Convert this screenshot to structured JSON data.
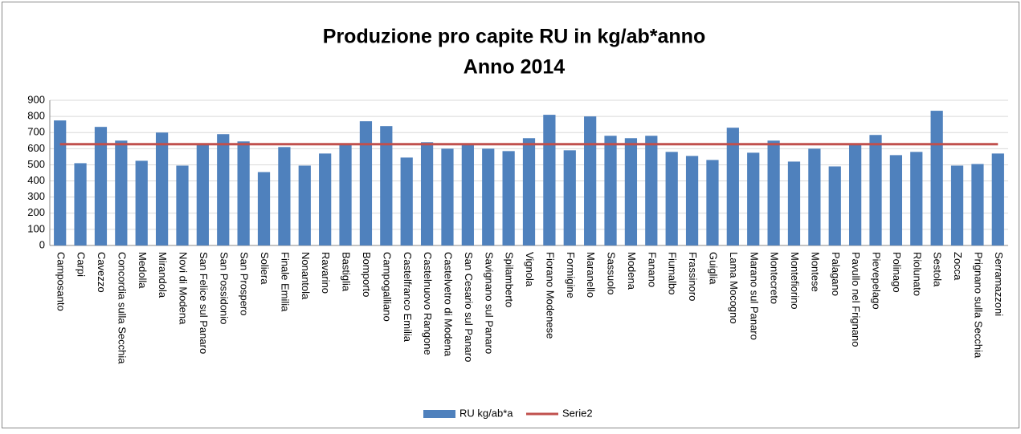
{
  "chart_data": {
    "type": "bar",
    "title": "Produzione  pro capite RU in kg/ab*anno",
    "subtitle": "Anno 2014",
    "categories": [
      "Camposanto",
      "Carpi",
      "Cavezzo",
      "Concordia sulla Secchia",
      "Medolla",
      "Mirandola",
      "Novi di Modena",
      "San Felice sul Panaro",
      "San Possidonio",
      "San Prospero",
      "Soliera",
      "Finale Emilia",
      "Nonantola",
      "Ravarino",
      "Bastiglia",
      "Bomporto",
      "Campogalliano",
      "Castelfranco Emilia",
      "Castelnuovo Rangone",
      "Castelvetro di Modena",
      "San Cesario sul Panaro",
      "Savignano sul Panaro",
      "Spilamberto",
      "Vignola",
      "Fiorano Modenese",
      "Formigine",
      "Maranello",
      "Sassuolo",
      "Modena",
      "Fanano",
      "Fiumalbo",
      "Frassinoro",
      "Guiglia",
      "Lama Mocogno",
      "Marano sul Panaro",
      "Montecreto",
      "Montefiorino",
      "Montese",
      "Palagano",
      "Pavullo nel Frignano",
      "Pievepelago",
      "Polinago",
      "Riolunato",
      "Sestola",
      "Zocca",
      "Prignano sulla Secchia",
      "Serramazzoni"
    ],
    "series": [
      {
        "name": "RU kg/ab*a",
        "type": "bar",
        "color": "#4f81bd",
        "values": [
          775,
          510,
          735,
          650,
          525,
          700,
          495,
          625,
          690,
          645,
          455,
          610,
          495,
          570,
          625,
          770,
          740,
          545,
          640,
          600,
          625,
          600,
          585,
          665,
          810,
          590,
          800,
          680,
          665,
          680,
          580,
          555,
          530,
          730,
          575,
          650,
          520,
          600,
          490,
          625,
          685,
          560,
          580,
          835,
          495,
          505,
          570
        ]
      },
      {
        "name": "Serie2",
        "type": "line",
        "color": "#c0504d",
        "values": [
          628,
          628,
          628,
          628,
          628,
          628,
          628,
          628,
          628,
          628,
          628,
          628,
          628,
          628,
          628,
          628,
          628,
          628,
          628,
          628,
          628,
          628,
          628,
          628,
          628,
          628,
          628,
          628,
          628,
          628,
          628,
          628,
          628,
          628,
          628,
          628,
          628,
          628,
          628,
          628,
          628,
          628,
          628,
          628,
          628,
          628,
          628
        ]
      }
    ],
    "ylim": [
      0,
      900
    ],
    "yticks": [
      0,
      100,
      200,
      300,
      400,
      500,
      600,
      700,
      800,
      900
    ],
    "grid": true,
    "legend": "bottom"
  }
}
